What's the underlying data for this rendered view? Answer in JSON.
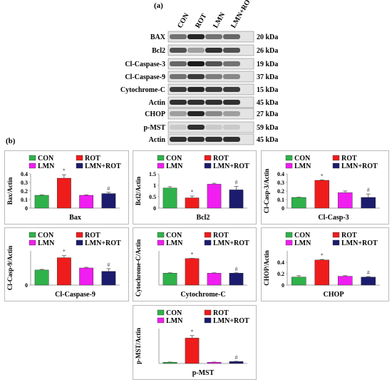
{
  "panel_a_label": "(a)",
  "panel_b_label": "(b)",
  "blot": {
    "lanes": [
      "CON",
      "ROT",
      "LMN",
      "LMN+ROT"
    ],
    "rows": [
      {
        "label": "BAX",
        "kda": "20 kDa"
      },
      {
        "label": "Bcl2",
        "kda": "26 kDa"
      },
      {
        "label": "Cl-Caspase-3",
        "kda": "19 kDa"
      },
      {
        "label": "Cl-Caspase-9",
        "kda": "37 kDa"
      },
      {
        "label": "Cytochrome-C",
        "kda": "15 kDa"
      },
      {
        "label": "Actin",
        "kda": "45 kDa"
      },
      {
        "label": "CHOP",
        "kda": "27 kDa"
      },
      {
        "label": "p-MST",
        "kda": "59 kDa"
      },
      {
        "label": "Actin",
        "kda": "45 kDa"
      }
    ]
  },
  "legend": {
    "items": [
      {
        "label": "CON",
        "color": "#2fb24a"
      },
      {
        "label": "ROT",
        "color": "#ef1c1c"
      },
      {
        "label": "LMN",
        "color": "#f01ef0"
      },
      {
        "label": "LMN+ROT",
        "color": "#1c1c6e"
      }
    ]
  },
  "chart_data": [
    {
      "type": "bar",
      "categories": [
        "CON",
        "ROT",
        "LMN",
        "LMN+ROT"
      ],
      "values": [
        0.15,
        0.35,
        0.15,
        0.17
      ],
      "errors": [
        0.005,
        0.04,
        0.005,
        0.015
      ],
      "annotations": [
        "",
        "*",
        "",
        "#"
      ],
      "ylim": [
        0,
        0.4
      ],
      "yticks": [
        "0",
        "0.1",
        "0.2",
        "0.3",
        "0.4"
      ],
      "ylabel": "Bax/Actin",
      "xlabel": "Bax"
    },
    {
      "type": "bar",
      "categories": [
        "CON",
        "ROT",
        "LMN",
        "LMN+ROT"
      ],
      "values": [
        0.88,
        0.45,
        1.05,
        0.8
      ],
      "errors": [
        0.06,
        0.08,
        0.04,
        0.15
      ],
      "annotations": [
        "",
        "*",
        "",
        "#"
      ],
      "ylim": [
        0,
        1.5
      ],
      "yticks": [
        "0",
        "0.5",
        "1",
        "1.5"
      ],
      "ylabel": "Bcl2/Actin",
      "xlabel": "Bcl2"
    },
    {
      "type": "bar",
      "categories": [
        "CON",
        "ROT",
        "LMN",
        "LMN+ROT"
      ],
      "values": [
        0.125,
        0.325,
        0.18,
        0.125
      ],
      "errors": [
        0.003,
        0.005,
        0.02,
        0.04
      ],
      "annotations": [
        "",
        "*",
        "",
        "#"
      ],
      "ylim": [
        0,
        0.4
      ],
      "yticks": [
        "0",
        "0.1",
        "0.2",
        "0.3",
        "0.4"
      ],
      "ylabel": "Cl-Casp-3/Actin",
      "xlabel": "Cl-Casp-3"
    },
    {
      "type": "bar",
      "categories": [
        "CON",
        "ROT",
        "LMN",
        "LMN+ROT"
      ],
      "values": [
        0.22,
        0.4,
        0.25,
        0.2
      ],
      "errors": [
        0.01,
        0.03,
        0.01,
        0.04
      ],
      "annotations": [
        "",
        "*",
        "",
        "#"
      ],
      "ylim": [
        0,
        0.5
      ],
      "yticks": [
        "0"
      ],
      "ylabel": "Cl-Casp-9/Actin",
      "xlabel": "Cl-Caspase-9"
    },
    {
      "type": "bar",
      "categories": [
        "CON",
        "ROT",
        "LMN",
        "LMN+ROT"
      ],
      "values": [
        0.42,
        0.93,
        0.42,
        0.42
      ],
      "errors": [
        0.01,
        0.01,
        0.01,
        0.01
      ],
      "annotations": [
        "",
        "*",
        "",
        "#"
      ],
      "ylim": [
        0,
        1.2
      ],
      "yticks": [],
      "ylabel": "Cytochrome-C/Actin",
      "xlabel": "Cytochrome-C"
    },
    {
      "type": "bar",
      "categories": [
        "CON",
        "ROT",
        "LMN",
        "LMN+ROT"
      ],
      "values": [
        0.14,
        0.44,
        0.155,
        0.14
      ],
      "errors": [
        0.025,
        0.01,
        0.01,
        0.01
      ],
      "annotations": [
        "",
        "*",
        "",
        "#"
      ],
      "ylim": [
        0,
        0.6
      ],
      "yticks": [
        "0",
        "0.2",
        "0.4"
      ],
      "ylabel": "CHOP/Actin",
      "xlabel": "CHOP"
    },
    {
      "type": "bar",
      "categories": [
        "CON",
        "ROT",
        "LMN",
        "LMN+ROT"
      ],
      "values": [
        0.02,
        0.4,
        0.02,
        0.03
      ],
      "errors": [
        0.003,
        0.04,
        0.003,
        0.005
      ],
      "annotations": [
        "",
        "*",
        "",
        "#"
      ],
      "ylim": [
        0,
        0.55
      ],
      "yticks": [],
      "ylabel": "p-MST/Actin",
      "xlabel": "p-MST"
    }
  ]
}
